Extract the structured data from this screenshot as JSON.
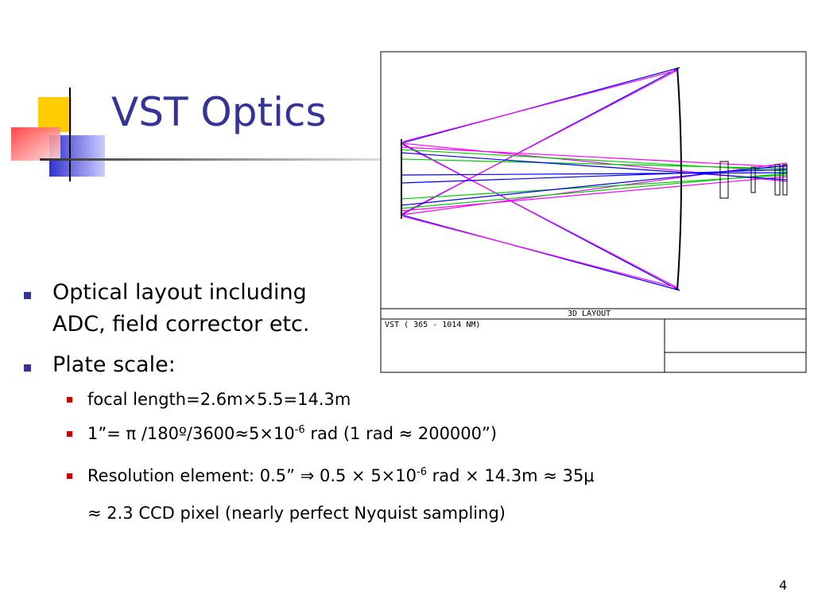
{
  "slide": {
    "title": "VST Optics",
    "bullets": [
      {
        "lines": [
          "Optical layout including",
          "ADC, field corrector etc."
        ]
      },
      {
        "lines": [
          "Plate scale:"
        ]
      }
    ],
    "sub_bullets": [
      {
        "parts": [
          "focal length=2.6m×5.5=14.3m"
        ]
      },
      {
        "parts": [
          "1”= π /180º/3600≈5×10",
          "-6",
          " rad (1 rad ≈ 200000”)"
        ]
      },
      {
        "parts": [
          "Resolution element: 0.5” ⇒ 0.5 × 5×10",
          "-6",
          " rad × 14.3m ≈ 35μ"
        ]
      }
    ],
    "continuation": "≈ 2.3 CCD pixel (nearly perfect Nyquist sampling)",
    "diagram": {
      "caption": "3D LAYOUT",
      "label": "VST ( 365 - 1014 NM)"
    },
    "page_number": "4"
  }
}
